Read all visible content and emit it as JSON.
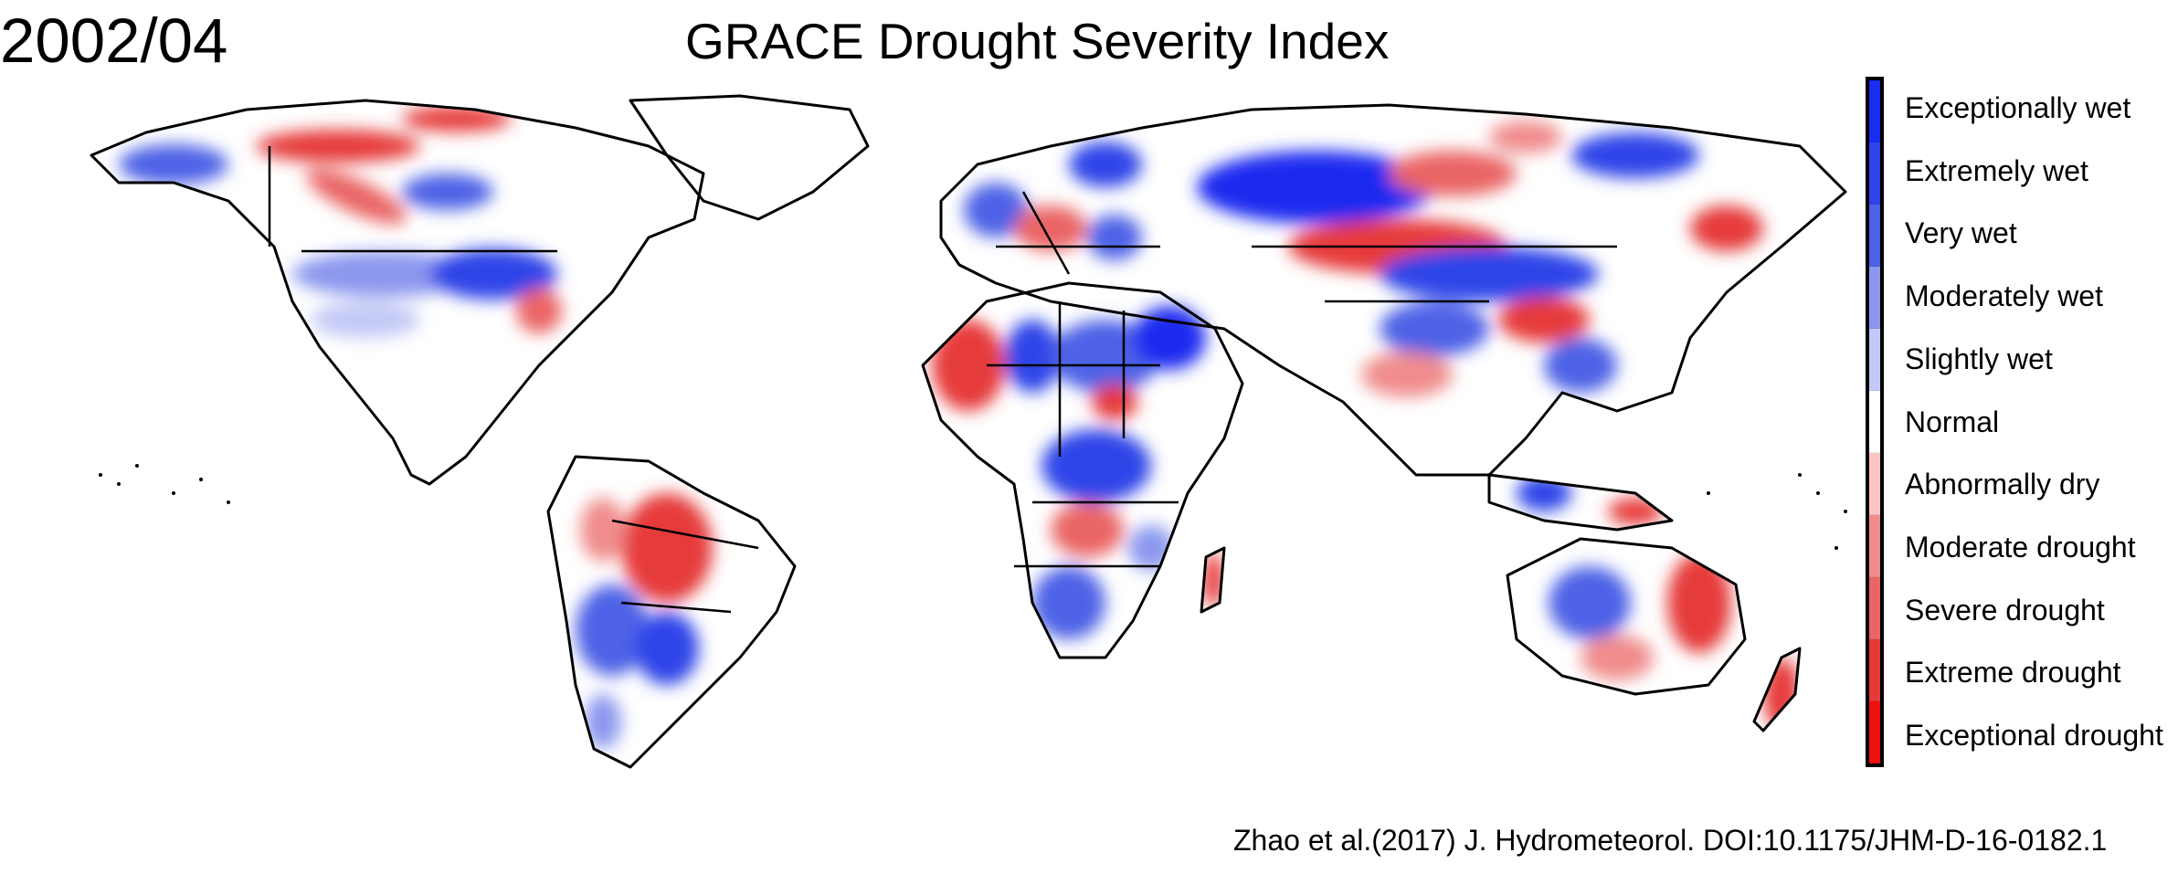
{
  "date": "2002/04",
  "title": "GRACE Drought Severity Index",
  "citation": "Zhao et al.(2017) J. Hydrometeorol. DOI:10.1175/JHM-D-16-0182.1",
  "legend": [
    {
      "label": "Exceptionally wet",
      "color": "#1a2cf0"
    },
    {
      "label": "Extremely wet",
      "color": "#2f44e8"
    },
    {
      "label": "Very wet",
      "color": "#4d62e6"
    },
    {
      "label": "Moderately wet",
      "color": "#8b97ee"
    },
    {
      "label": "Slightly wet",
      "color": "#c3c9f6"
    },
    {
      "label": "Normal",
      "color": "#ffffff"
    },
    {
      "label": "Abnormally dry",
      "color": "#f8c4c4"
    },
    {
      "label": "Moderate drought",
      "color": "#f08c8c"
    },
    {
      "label": "Severe drought",
      "color": "#ea6565"
    },
    {
      "label": "Extreme drought",
      "color": "#e63a3a"
    },
    {
      "label": "Exceptional drought",
      "color": "#f01010"
    }
  ],
  "map": {
    "land_color": "#ffffff",
    "border_color": "#000000",
    "wet_strong": "#1a2cf0",
    "wet_moderate": "#8b97ee",
    "dry_moderate": "#f08c8c",
    "dry_strong": "#f01010"
  }
}
